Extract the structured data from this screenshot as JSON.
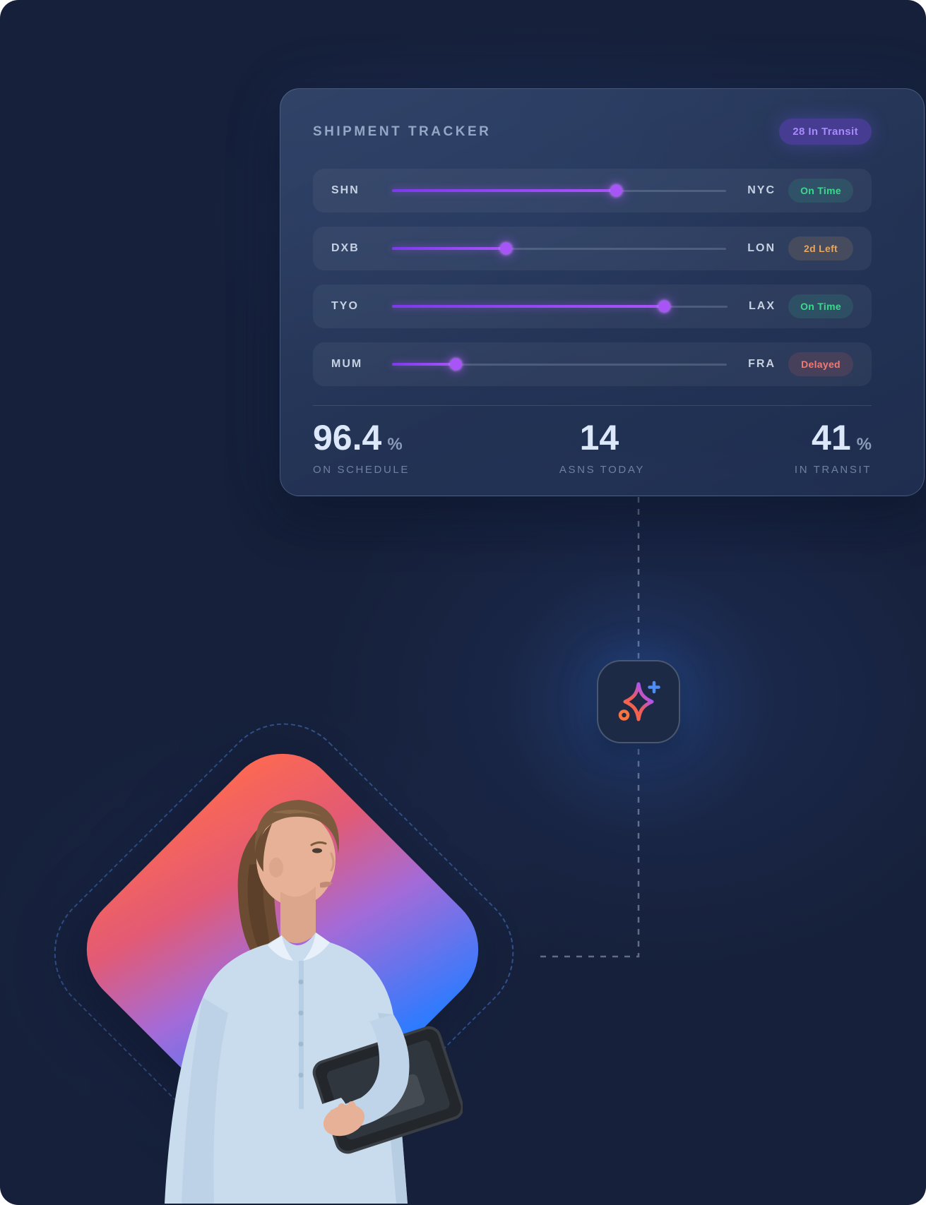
{
  "card": {
    "title": "SHIPMENT TRACKER",
    "transit_badge": "28 In Transit",
    "shipments": [
      {
        "origin": "SHN",
        "destination": "NYC",
        "progress_pct": 67,
        "status": "On Time",
        "status_type": "ontime"
      },
      {
        "origin": "DXB",
        "destination": "LON",
        "progress_pct": 34,
        "status": "2d Left",
        "status_type": "warning"
      },
      {
        "origin": "TYO",
        "destination": "LAX",
        "progress_pct": 81,
        "status": "On Time",
        "status_type": "ontime"
      },
      {
        "origin": "MUM",
        "destination": "FRA",
        "progress_pct": 19,
        "status": "Delayed",
        "status_type": "delayed"
      }
    ],
    "stats": [
      {
        "value": "96.4",
        "suffix": "%",
        "label": "ON SCHEDULE"
      },
      {
        "value": "14",
        "suffix": "",
        "label": "ASNS TODAY"
      },
      {
        "value": "41",
        "suffix": "%",
        "label": "IN TRANSIT"
      }
    ]
  },
  "icons": {
    "sparkle": "ai-sparkle-icon"
  },
  "colors": {
    "background": "#16203A",
    "accent_purple": "#A855F7",
    "badge_purple_bg": "#463C92",
    "badge_purple_text": "#A78BFA",
    "status_ontime": "#3FD68F",
    "status_warning": "#E8A75D",
    "status_delayed": "#F07A76",
    "diamond_gradient": [
      "#FF6A4F",
      "#A46BD8",
      "#2E7BFF"
    ]
  }
}
